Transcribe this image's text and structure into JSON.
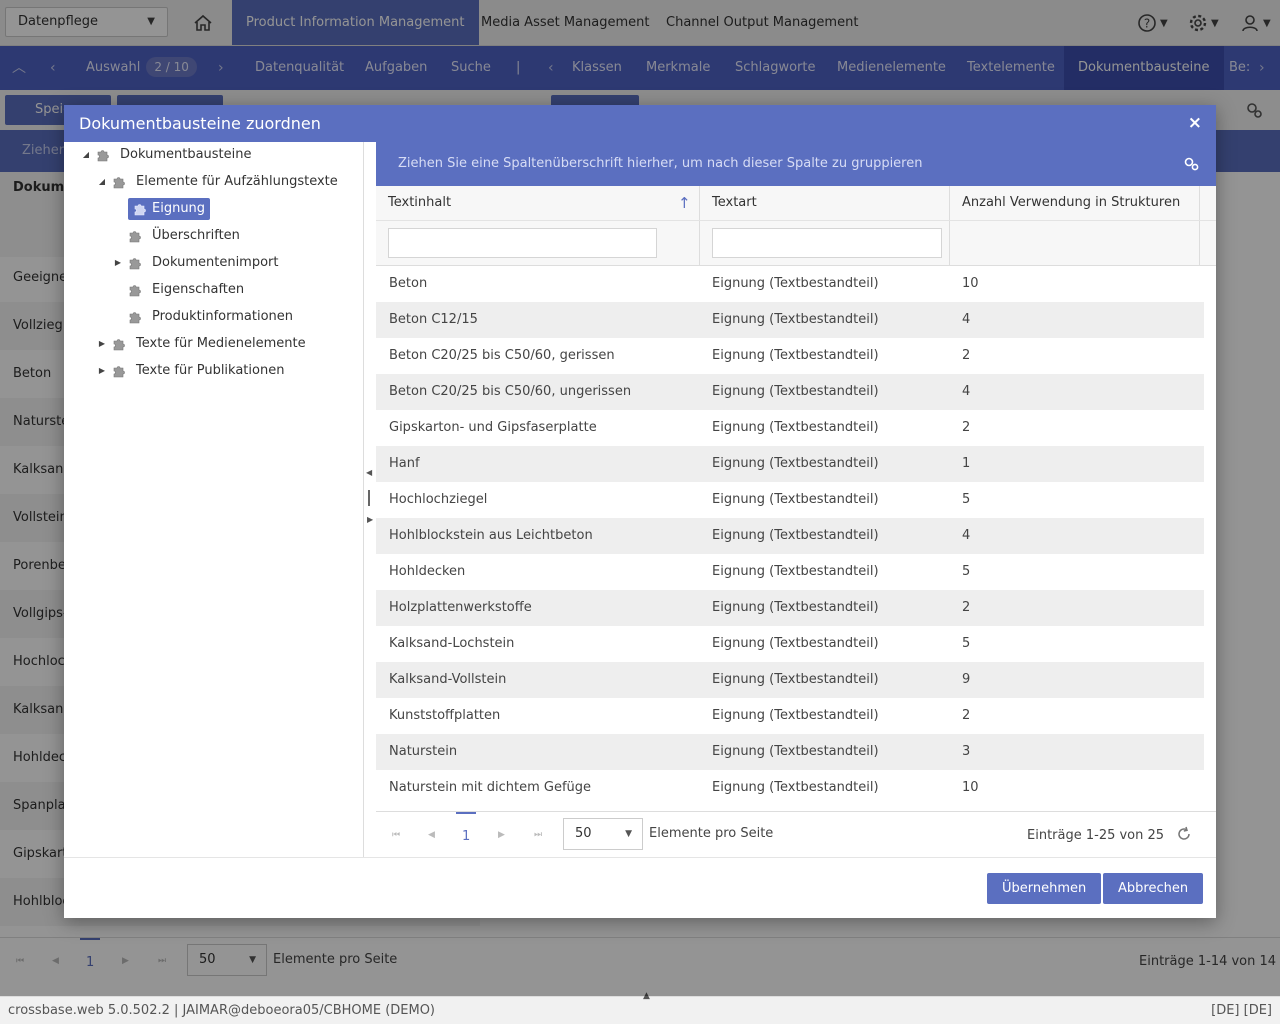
{
  "topbar": {
    "context_select": "Datenpflege",
    "apps": [
      "Product Information Management",
      "Media Asset Management",
      "Channel Output Management"
    ]
  },
  "nav2": {
    "selection_label": "Auswahl",
    "selection_badge": "2 / 10",
    "items_left": [
      "Datenqualität",
      "Aufgaben",
      "Suche"
    ],
    "separator": "|",
    "items_right": [
      "Klassen",
      "Merkmale",
      "Schlagworte",
      "Medienelemente",
      "Textelemente",
      "Dokumentbausteine",
      "Be:"
    ]
  },
  "background": {
    "toolbar_save": "Speic",
    "bar2_text": "Ziehen",
    "column_header": "Dokume",
    "rows": [
      "Geeigne",
      "Vollzieg",
      "Beton",
      "Naturste",
      "Kalksanc",
      "Vollstein",
      "Porenbe",
      "Vollgips-",
      "Hochloch",
      "Kalksanc",
      "Hohldec",
      "Spanplat",
      "Gipskart",
      "Hohlbloc"
    ],
    "pager_page": "1",
    "pager_size": "50",
    "pager_size_label": "Elemente pro Seite",
    "pager_info": "Einträge 1-14 von 14"
  },
  "status": {
    "left": "crossbase.web 5.0.502.2 | JAIMAR@deboeora05/CBHOME (DEMO)",
    "right": "[DE] [DE]"
  },
  "dialog": {
    "title": "Dokumentbausteine zuordnen",
    "close_label": "×",
    "tree": [
      {
        "label": "Dokumentbausteine",
        "toggle": "◢"
      },
      {
        "label": "Elemente für Aufzählungstexte",
        "toggle": "◢"
      },
      {
        "label": "Eignung",
        "toggle": ""
      },
      {
        "label": "Überschriften",
        "toggle": ""
      },
      {
        "label": "Dokumentenimport",
        "toggle": "▶"
      },
      {
        "label": "Eigenschaften",
        "toggle": ""
      },
      {
        "label": "Produktinformationen",
        "toggle": ""
      },
      {
        "label": "Texte für Medienelemente",
        "toggle": "▶"
      },
      {
        "label": "Texte für Publikationen",
        "toggle": "▶"
      }
    ],
    "grid": {
      "group_hint": "Ziehen Sie eine Spaltenüberschrift hierher, um nach dieser Spalte zu gruppieren",
      "columns": [
        "Textinhalt",
        "Textart",
        "Anzahl Verwendung in Strukturen"
      ],
      "sort_indicator": "↑",
      "rows": [
        [
          "Beton",
          "Eignung (Textbestandteil)",
          "10"
        ],
        [
          "Beton C12/15",
          "Eignung (Textbestandteil)",
          "4"
        ],
        [
          "Beton C20/25 bis C50/60, gerissen",
          "Eignung (Textbestandteil)",
          "2"
        ],
        [
          "Beton C20/25 bis C50/60, ungerissen",
          "Eignung (Textbestandteil)",
          "4"
        ],
        [
          "Gipskarton- und Gipsfaserplatte",
          "Eignung (Textbestandteil)",
          "2"
        ],
        [
          "Hanf",
          "Eignung (Textbestandteil)",
          "1"
        ],
        [
          "Hochlochziegel",
          "Eignung (Textbestandteil)",
          "5"
        ],
        [
          "Hohlblockstein aus Leichtbeton",
          "Eignung (Textbestandteil)",
          "4"
        ],
        [
          "Hohldecken",
          "Eignung (Textbestandteil)",
          "5"
        ],
        [
          "Holzplattenwerkstoffe",
          "Eignung (Textbestandteil)",
          "2"
        ],
        [
          "Kalksand-Lochstein",
          "Eignung (Textbestandteil)",
          "5"
        ],
        [
          "Kalksand-Vollstein",
          "Eignung (Textbestandteil)",
          "9"
        ],
        [
          "Kunststoffplatten",
          "Eignung (Textbestandteil)",
          "2"
        ],
        [
          "Naturstein",
          "Eignung (Textbestandteil)",
          "3"
        ],
        [
          "Naturstein mit dichtem Gefüge",
          "Eignung (Textbestandteil)",
          "10"
        ]
      ],
      "pager": {
        "page": "1",
        "page_size": "50",
        "page_size_label": "Elemente pro Seite",
        "info": "Einträge 1-25 von 25"
      }
    },
    "buttons": {
      "ok": "Übernehmen",
      "cancel": "Abbrechen"
    }
  },
  "colors": {
    "accent": "#5b6fc0",
    "nav": "#4f62c4",
    "nav_active": "#3d4fae"
  },
  "icons": [
    "home-icon",
    "help-icon",
    "gear-icon",
    "user-icon",
    "puzzle-icon",
    "refresh-icon",
    "settings-gear-icon"
  ]
}
